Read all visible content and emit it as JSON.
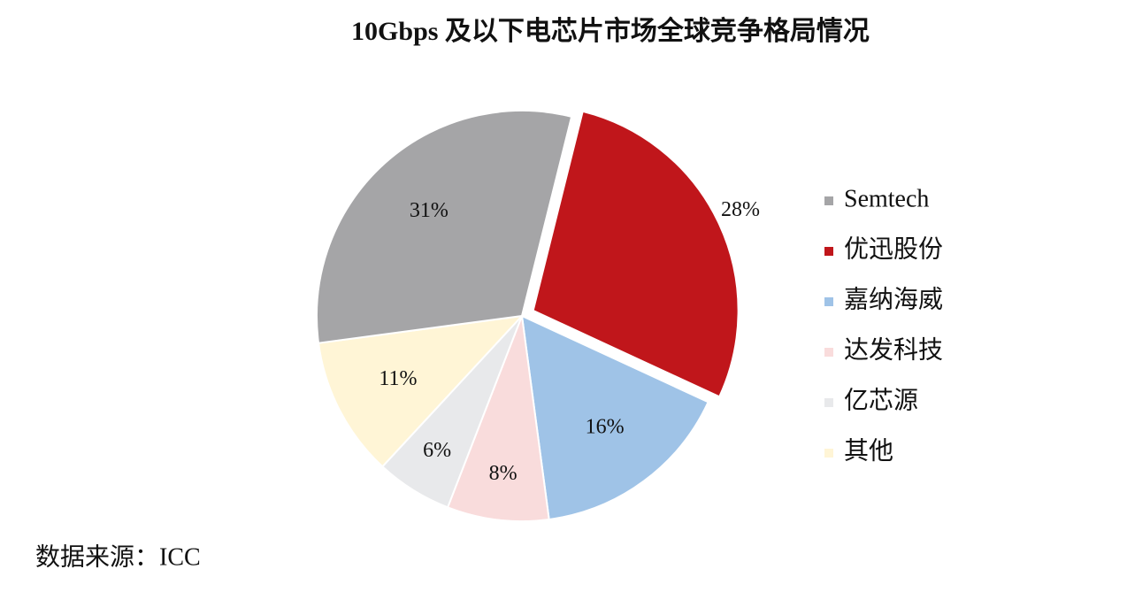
{
  "chart_data": {
    "type": "pie",
    "title": "10Gbps 及以下电芯片市场全球竞争格局情况",
    "categories": [
      "Semtech",
      "优迅股份",
      "嘉纳海威",
      "达发科技",
      "亿芯源",
      "其他"
    ],
    "values": [
      31,
      28,
      16,
      8,
      6,
      11
    ],
    "value_labels": [
      "31%",
      "28%",
      "16%",
      "8%",
      "6%",
      "11%"
    ],
    "colors": [
      "#a5a5a7",
      "#c0161b",
      "#9fc3e7",
      "#f9dcdc",
      "#e8e9eb",
      "#fff5d6"
    ],
    "legend": "right",
    "source": "数据来源：ICC"
  }
}
